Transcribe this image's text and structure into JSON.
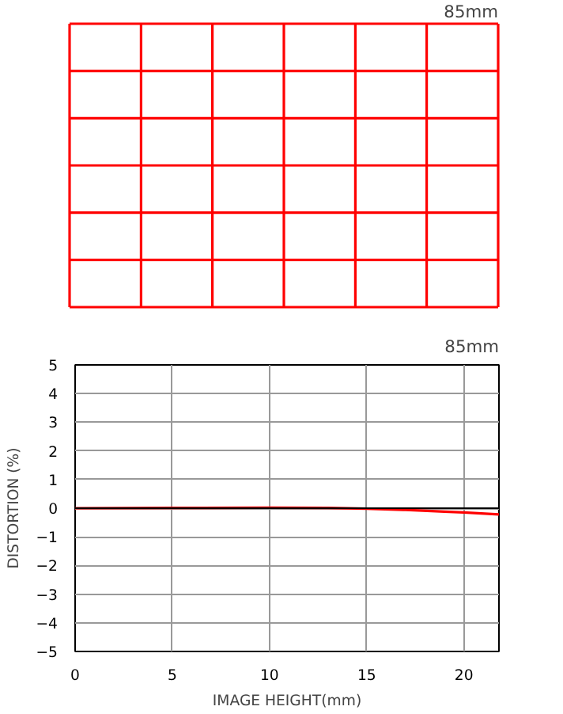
{
  "chart_data": [
    {
      "type": "other",
      "title": "85mm"
    },
    {
      "type": "line",
      "title": "85mm",
      "xlabel": "IMAGE HEIGHT(mm)",
      "ylabel": "DISTORTION (%)",
      "xlim": [
        0,
        21.8
      ],
      "ylim": [
        -5,
        5
      ],
      "xticks": [
        0,
        5,
        10,
        15,
        20
      ],
      "yticks": [
        -5,
        -4,
        -3,
        -2,
        -1,
        0,
        1,
        2,
        3,
        4,
        5
      ],
      "grid": true,
      "line_style": "solid",
      "ref_lines": [
        {
          "axis": "y",
          "value": 0,
          "color": "#000000"
        }
      ],
      "series": [
        {
          "color": "#ff0000",
          "x": [
            0,
            5,
            10,
            13,
            15,
            17,
            19,
            20,
            21.8
          ],
          "values": [
            0,
            0.01,
            0.02,
            0.01,
            -0.02,
            -0.06,
            -0.12,
            -0.15,
            -0.22
          ]
        }
      ]
    }
  ]
}
